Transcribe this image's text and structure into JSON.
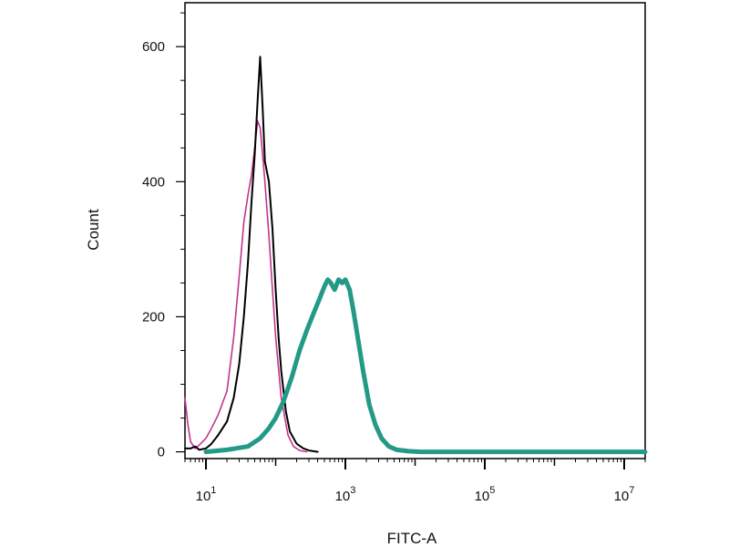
{
  "chart_data": {
    "type": "line",
    "title": "",
    "xlabel": "FITC-A",
    "ylabel": "Count",
    "x_scale": "log",
    "xlim": [
      5,
      20000000
    ],
    "ylim": [
      -10,
      665
    ],
    "grid": false,
    "y_ticks": [
      {
        "value": 0,
        "label": "0"
      },
      {
        "value": 200,
        "label": "200"
      },
      {
        "value": 400,
        "label": "400"
      },
      {
        "value": 600,
        "label": "600"
      }
    ],
    "x_ticks": [
      {
        "value": 10,
        "base": "10",
        "exp": "1"
      },
      {
        "value": 1000,
        "base": "10",
        "exp": "3"
      },
      {
        "value": 100000,
        "base": "10",
        "exp": "5"
      },
      {
        "value": 10000000,
        "base": "10",
        "exp": "7"
      }
    ],
    "series": [
      {
        "color": "#c2358e",
        "x": [
          5,
          5.5,
          6,
          7,
          8,
          10,
          12,
          15,
          20,
          25,
          30,
          35,
          40,
          45,
          50,
          55,
          60,
          65,
          70,
          80,
          90,
          100,
          120,
          150,
          180,
          220,
          280
        ],
        "y": [
          80,
          40,
          15,
          5,
          10,
          20,
          35,
          55,
          90,
          170,
          260,
          340,
          380,
          410,
          450,
          490,
          480,
          440,
          400,
          320,
          240,
          170,
          80,
          25,
          8,
          2,
          0
        ]
      },
      {
        "color": "#000000",
        "x": [
          5,
          6,
          7,
          8,
          10,
          12,
          15,
          20,
          25,
          30,
          35,
          40,
          45,
          50,
          55,
          60,
          65,
          70,
          80,
          90,
          100,
          110,
          120,
          140,
          160,
          200,
          250,
          300,
          400
        ],
        "y": [
          5,
          5,
          8,
          3,
          5,
          12,
          25,
          45,
          80,
          130,
          200,
          280,
          370,
          440,
          520,
          585,
          510,
          430,
          400,
          330,
          240,
          170,
          120,
          60,
          30,
          12,
          5,
          2,
          0
        ]
      },
      {
        "color": "#239a86",
        "x": [
          10,
          20,
          40,
          60,
          80,
          100,
          130,
          170,
          220,
          280,
          350,
          420,
          500,
          560,
          620,
          700,
          800,
          900,
          1000,
          1150,
          1300,
          1500,
          1800,
          2200,
          2700,
          3300,
          4200,
          5500,
          8000,
          12000,
          30000,
          100000,
          1000000,
          20000000
        ],
        "y": [
          0,
          3,
          8,
          20,
          35,
          50,
          75,
          110,
          150,
          180,
          205,
          225,
          245,
          255,
          250,
          240,
          255,
          250,
          255,
          240,
          210,
          170,
          120,
          70,
          40,
          20,
          8,
          3,
          1,
          0,
          0,
          0,
          0,
          0
        ]
      }
    ]
  }
}
